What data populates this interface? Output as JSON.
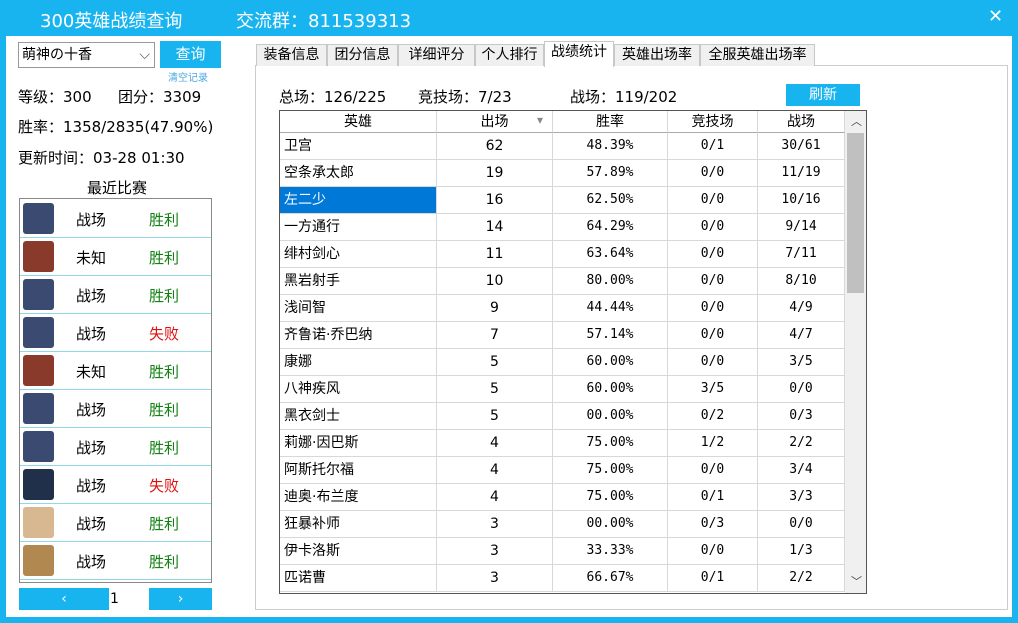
{
  "window": {
    "title": "300英雄战绩查询",
    "group": "交流群：811539313",
    "close": "✕"
  },
  "search": {
    "player": "萌神の十香",
    "button": "查询",
    "clear": "清空记录"
  },
  "profile": {
    "level": "等级：300",
    "score": "团分：3309",
    "winrate": "胜率：1358/2835(47.90%)",
    "updated": "更新时间：03-28 01:30"
  },
  "recent": {
    "title": "最近比赛",
    "matches": [
      {
        "mode": "战场",
        "result": "胜利",
        "color": "#108010",
        "avatar": "#3a4a70"
      },
      {
        "mode": "未知",
        "result": "胜利",
        "color": "#108010",
        "avatar": "#8a3a2a"
      },
      {
        "mode": "战场",
        "result": "胜利",
        "color": "#108010",
        "avatar": "#3a4a70"
      },
      {
        "mode": "战场",
        "result": "失败",
        "color": "#e01010",
        "avatar": "#3a4a70"
      },
      {
        "mode": "未知",
        "result": "胜利",
        "color": "#108010",
        "avatar": "#8a3a2a"
      },
      {
        "mode": "战场",
        "result": "胜利",
        "color": "#108010",
        "avatar": "#3a4a70"
      },
      {
        "mode": "战场",
        "result": "胜利",
        "color": "#108010",
        "avatar": "#3a4a70"
      },
      {
        "mode": "战场",
        "result": "失败",
        "color": "#e01010",
        "avatar": "#20304a"
      },
      {
        "mode": "战场",
        "result": "胜利",
        "color": "#108010",
        "avatar": "#d8b890"
      },
      {
        "mode": "战场",
        "result": "胜利",
        "color": "#108010",
        "avatar": "#b08850"
      }
    ],
    "page": "1",
    "prev": "‹",
    "next": "›"
  },
  "tabs": {
    "items": [
      "装备信息",
      "团分信息",
      "详细评分",
      "个人排行",
      "战绩统计",
      "英雄出场率",
      "全服英雄出场率"
    ],
    "active": 4
  },
  "stats": {
    "total": "总场：126/225",
    "arena": "竞技场：7/23",
    "battle": "战场：119/202",
    "refresh": "刷新"
  },
  "table": {
    "headers": [
      "英雄",
      "出场",
      "胜率",
      "竞技场",
      "战场"
    ],
    "sort_mark": "▾",
    "selected": 2,
    "rows": [
      [
        "卫宫",
        "62",
        "48.39%",
        "0/1",
        "30/61"
      ],
      [
        "空条承太郎",
        "19",
        "57.89%",
        "0/0",
        "11/19"
      ],
      [
        "左二少",
        "16",
        "62.50%",
        "0/0",
        "10/16"
      ],
      [
        "一方通行",
        "14",
        "64.29%",
        "0/0",
        "9/14"
      ],
      [
        "绯村剑心",
        "11",
        "63.64%",
        "0/0",
        "7/11"
      ],
      [
        "黑岩射手",
        "10",
        "80.00%",
        "0/0",
        "8/10"
      ],
      [
        "浅间智",
        "9",
        "44.44%",
        "0/0",
        "4/9"
      ],
      [
        "齐鲁诺·乔巴纳",
        "7",
        "57.14%",
        "0/0",
        "4/7"
      ],
      [
        "康娜",
        "5",
        "60.00%",
        "0/0",
        "3/5"
      ],
      [
        "八神疾风",
        "5",
        "60.00%",
        "3/5",
        "0/0"
      ],
      [
        "黑衣剑士",
        "5",
        "00.00%",
        "0/2",
        "0/3"
      ],
      [
        "莉娜·因巴斯",
        "4",
        "75.00%",
        "1/2",
        "2/2"
      ],
      [
        "阿斯托尔福",
        "4",
        "75.00%",
        "0/0",
        "3/4"
      ],
      [
        "迪奥·布兰度",
        "4",
        "75.00%",
        "0/1",
        "3/3"
      ],
      [
        "狂暴补师",
        "3",
        "00.00%",
        "0/3",
        "0/0"
      ],
      [
        "伊卡洛斯",
        "3",
        "33.33%",
        "0/0",
        "1/3"
      ],
      [
        "匹诺曹",
        "3",
        "66.67%",
        "0/1",
        "2/2"
      ]
    ]
  }
}
